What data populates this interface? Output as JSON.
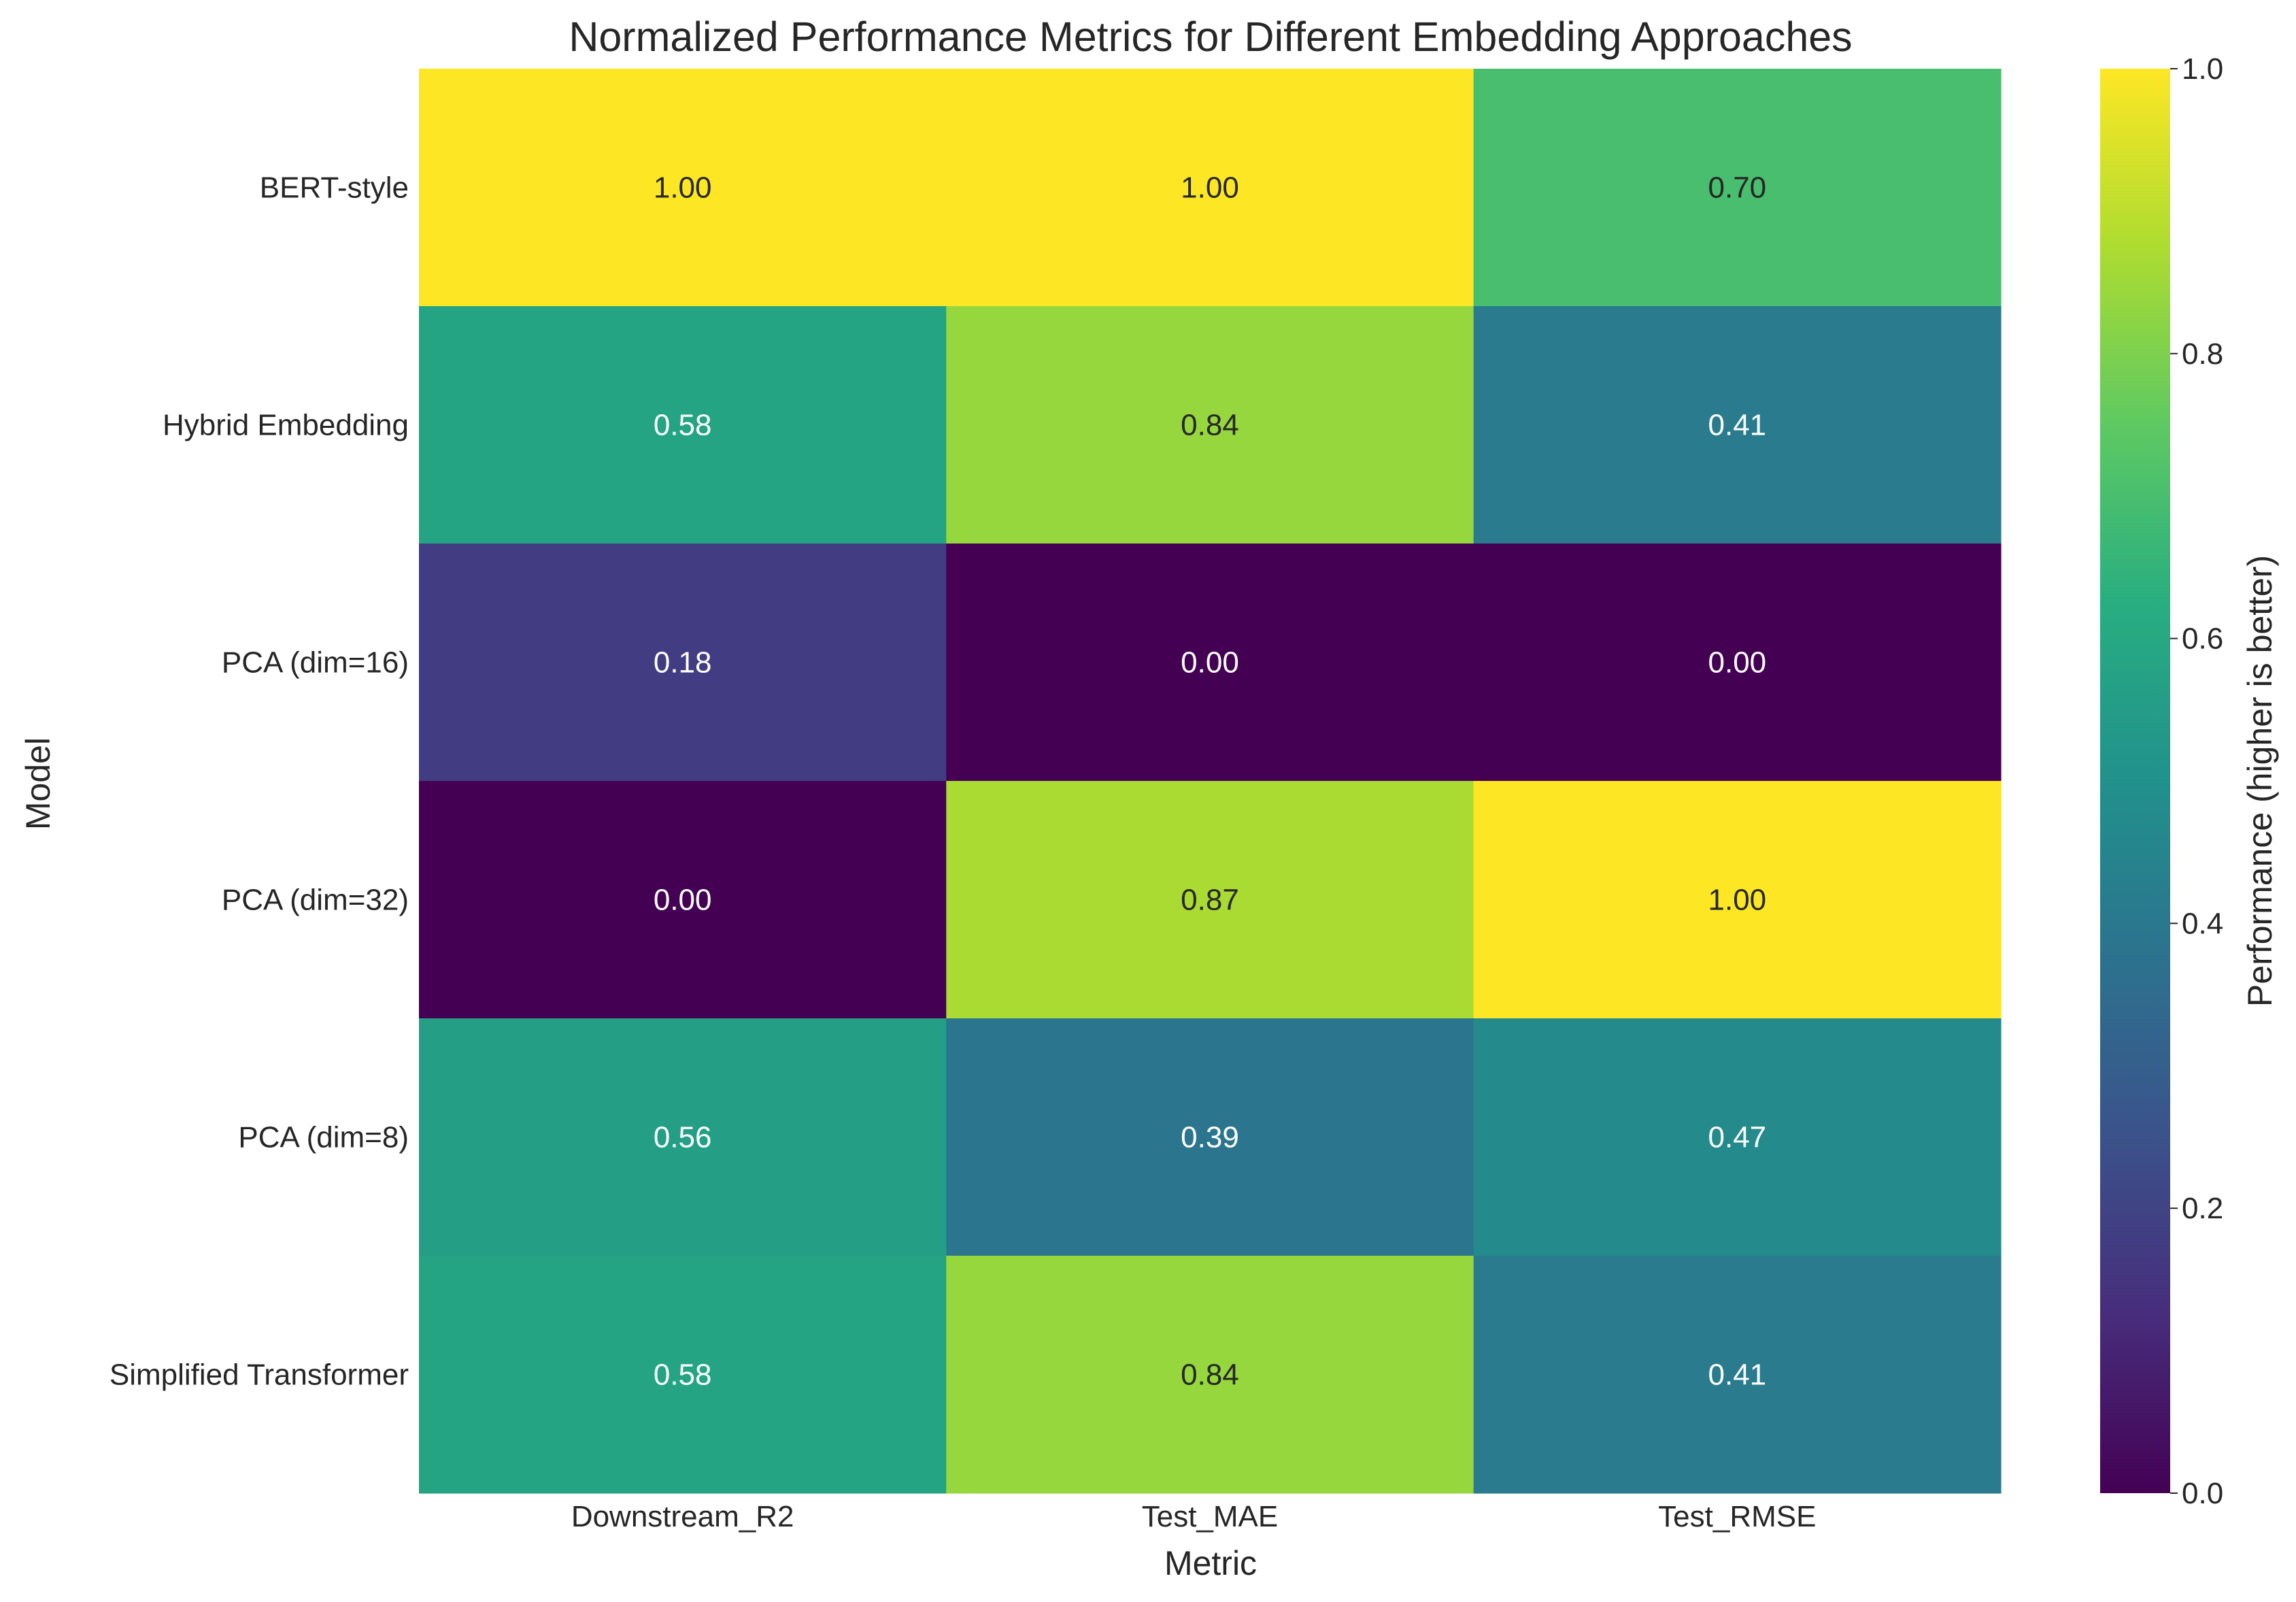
{
  "chart_data": {
    "type": "heatmap",
    "title": "Normalized Performance Metrics for Different Embedding Approaches",
    "xlabel": "Metric",
    "ylabel": "Model",
    "x_categories": [
      "Downstream_R2",
      "Test_MAE",
      "Test_RMSE"
    ],
    "y_categories": [
      "BERT-style",
      "Hybrid Embedding",
      "PCA (dim=16)",
      "PCA (dim=32)",
      "PCA (dim=8)",
      "Simplified Transformer"
    ],
    "values": [
      [
        1.0,
        1.0,
        0.7
      ],
      [
        0.58,
        0.84,
        0.41
      ],
      [
        0.18,
        0.0,
        0.0
      ],
      [
        0.0,
        0.87,
        1.0
      ],
      [
        0.56,
        0.39,
        0.47
      ],
      [
        0.58,
        0.84,
        0.41
      ]
    ],
    "value_format": "0.00",
    "colormap": "viridis",
    "colorbar": {
      "label": "Performance (higher is better)",
      "range": [
        0.0,
        1.0
      ],
      "ticks": [
        "0.0",
        "0.2",
        "0.4",
        "0.6",
        "0.8",
        "1.0"
      ]
    },
    "grid": false
  }
}
